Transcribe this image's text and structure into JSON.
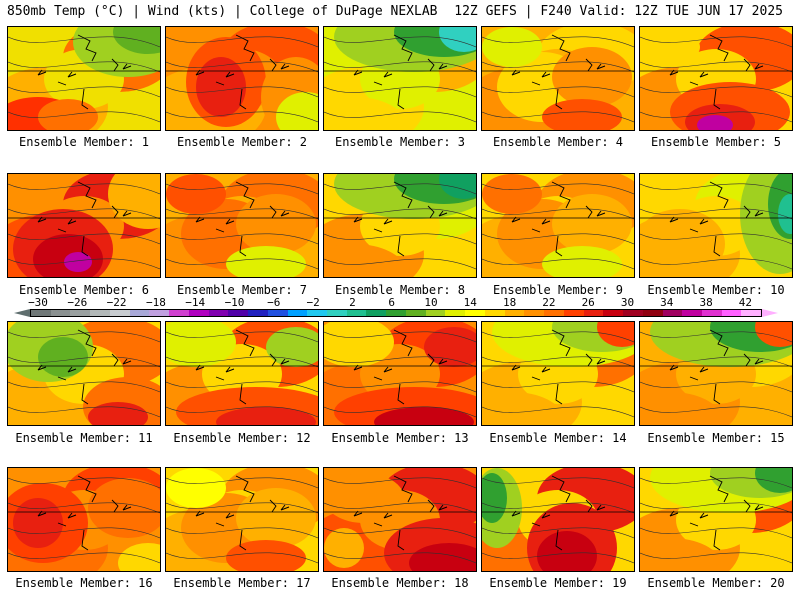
{
  "header": {
    "left": "850mb Temp (°C) | Wind (kts) | College of DuPage NEXLAB",
    "right": "12Z GEFS | F240 Valid: 12Z TUE JUN 17 2025"
  },
  "colorbar": {
    "tick_labels": [
      "−30",
      "−26",
      "−22",
      "−18",
      "−14",
      "−10",
      "−6",
      "−2",
      "2",
      "6",
      "10",
      "14",
      "18",
      "22",
      "26",
      "30",
      "34",
      "38",
      "42"
    ],
    "colors": [
      "#707878",
      "#8a9090",
      "#9aa0a0",
      "#b2b8b8",
      "#c8ccd0",
      "#a8a8d8",
      "#c0a0e0",
      "#d040d0",
      "#b000c0",
      "#8000b0",
      "#5000a8",
      "#2020c0",
      "#2050e0",
      "#00a0ff",
      "#20c8f0",
      "#30d0c0",
      "#20c090",
      "#10a060",
      "#30a030",
      "#60b020",
      "#a0d020",
      "#e0f000",
      "#ffff00",
      "#ffd800",
      "#ffb000",
      "#ff9000",
      "#ff7000",
      "#ff4000",
      "#e82010",
      "#c80010",
      "#a00020",
      "#900010",
      "#a00060",
      "#c000a0",
      "#e030d0",
      "#ff60ff",
      "#ffb0ff"
    ]
  },
  "members": [
    {
      "label": "Ensemble Member: 1",
      "theme": "green-ne",
      "colors": [
        "#f0e000",
        "#ffb000",
        "#ff7000",
        "#ff3000",
        "#a0d020",
        "#60b020"
      ]
    },
    {
      "label": "Ensemble Member: 2",
      "theme": "red-w",
      "colors": [
        "#ff9000",
        "#ffb000",
        "#ff5000",
        "#e82010",
        "#ffd800",
        "#e0f000"
      ]
    },
    {
      "label": "Ensemble Member: 3",
      "theme": "green-n",
      "colors": [
        "#e0f000",
        "#ffd800",
        "#ffb000",
        "#a0d020",
        "#30a030",
        "#30d0c0"
      ]
    },
    {
      "label": "Ensemble Member: 4",
      "theme": "orange",
      "colors": [
        "#ffb000",
        "#ff9000",
        "#ffd800",
        "#ff7000",
        "#e0f000",
        "#ff5000"
      ]
    },
    {
      "label": "Ensemble Member: 5",
      "theme": "hot",
      "colors": [
        "#ffd800",
        "#ff9000",
        "#ff5000",
        "#e82010",
        "#c80010",
        "#c000a0"
      ]
    },
    {
      "label": "Ensemble Member: 6",
      "theme": "hot-sw",
      "colors": [
        "#ff9000",
        "#ff5000",
        "#e82010",
        "#c80010",
        "#ffb000",
        "#c000a0"
      ]
    },
    {
      "label": "Ensemble Member: 7",
      "theme": "orange",
      "colors": [
        "#ffb000",
        "#ff9000",
        "#ff7000",
        "#ffd800",
        "#ff5000",
        "#e0f000"
      ]
    },
    {
      "label": "Ensemble Member: 8",
      "theme": "green-n",
      "colors": [
        "#ffd800",
        "#ff9000",
        "#e0f000",
        "#a0d020",
        "#30a030",
        "#10a060"
      ]
    },
    {
      "label": "Ensemble Member: 9",
      "theme": "orange",
      "colors": [
        "#ffd800",
        "#ffb000",
        "#ff9000",
        "#ffff00",
        "#ff7000",
        "#e0f000"
      ]
    },
    {
      "label": "Ensemble Member: 10",
      "theme": "green-e",
      "colors": [
        "#ffd800",
        "#ffb000",
        "#e0f000",
        "#a0d020",
        "#30a030",
        "#20c090"
      ]
    },
    {
      "label": "Ensemble Member: 11",
      "theme": "green-w",
      "colors": [
        "#ffd800",
        "#ffb000",
        "#ff7000",
        "#e82010",
        "#a0d020",
        "#60b020"
      ]
    },
    {
      "label": "Ensemble Member: 12",
      "theme": "hot-s",
      "colors": [
        "#ffd800",
        "#ff9000",
        "#ff5000",
        "#e82010",
        "#e0f000",
        "#a0d020"
      ]
    },
    {
      "label": "Ensemble Member: 13",
      "theme": "hot-s",
      "colors": [
        "#ff9000",
        "#ff7000",
        "#ff4000",
        "#c80010",
        "#ffd800",
        "#e82010"
      ]
    },
    {
      "label": "Ensemble Member: 14",
      "theme": "green-n",
      "colors": [
        "#ffd800",
        "#ffb000",
        "#ff7000",
        "#e0f000",
        "#a0d020",
        "#ff4000"
      ]
    },
    {
      "label": "Ensemble Member: 15",
      "theme": "green-n",
      "colors": [
        "#ffb000",
        "#ff9000",
        "#ffd800",
        "#a0d020",
        "#30a030",
        "#ff5000"
      ]
    },
    {
      "label": "Ensemble Member: 16",
      "theme": "hot-w",
      "colors": [
        "#ff9000",
        "#ff7000",
        "#ff4000",
        "#e82010",
        "#ffb000",
        "#ffd800"
      ]
    },
    {
      "label": "Ensemble Member: 17",
      "theme": "orange",
      "colors": [
        "#ffd800",
        "#ffb000",
        "#ff9000",
        "#ff7000",
        "#ffff00",
        "#ff5000"
      ]
    },
    {
      "label": "Ensemble Member: 18",
      "theme": "hot-se",
      "colors": [
        "#ff9000",
        "#ff5000",
        "#e82010",
        "#c80010",
        "#ffb000",
        "#ffd800"
      ]
    },
    {
      "label": "Ensemble Member: 19",
      "theme": "hot-c",
      "colors": [
        "#ffd800",
        "#ff7000",
        "#e82010",
        "#c80010",
        "#a0d020",
        "#30a030"
      ]
    },
    {
      "label": "Ensemble Member: 20",
      "theme": "green-n",
      "colors": [
        "#ffd800",
        "#ff9000",
        "#ff5000",
        "#e0f000",
        "#a0d020",
        "#30a030"
      ]
    }
  ]
}
